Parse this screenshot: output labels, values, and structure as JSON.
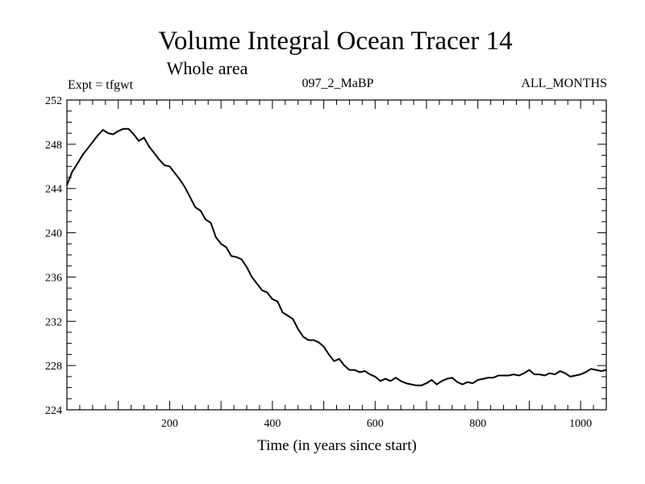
{
  "chart_data": {
    "type": "line",
    "title": "Volume Integral Ocean Tracer 14",
    "subtitle": "Whole area",
    "experiment": "Expt = tfgwt",
    "run_id": "097_2_MaBP",
    "period": "ALL_MONTHS",
    "xlabel": "Time (in years since start)",
    "ylabel": "",
    "xlim": [
      0,
      1050
    ],
    "ylim": [
      224,
      252
    ],
    "x_ticks": [
      200,
      400,
      600,
      800,
      1000
    ],
    "y_ticks": [
      224,
      228,
      232,
      236,
      240,
      244,
      248,
      252
    ],
    "grid": false,
    "series": [
      {
        "name": "Ocean Tracer 14",
        "color": "#000000",
        "x": [
          0,
          10,
          20,
          30,
          40,
          50,
          60,
          70,
          80,
          90,
          100,
          110,
          120,
          130,
          140,
          150,
          160,
          170,
          180,
          190,
          200,
          210,
          220,
          230,
          240,
          250,
          260,
          270,
          280,
          290,
          300,
          310,
          320,
          330,
          340,
          350,
          360,
          370,
          380,
          390,
          400,
          410,
          420,
          430,
          440,
          450,
          460,
          470,
          480,
          490,
          500,
          510,
          520,
          530,
          540,
          550,
          560,
          570,
          580,
          590,
          600,
          610,
          620,
          630,
          640,
          650,
          660,
          670,
          680,
          690,
          700,
          710,
          720,
          730,
          740,
          750,
          760,
          770,
          780,
          790,
          800,
          810,
          820,
          830,
          840,
          850,
          860,
          870,
          880,
          890,
          900,
          910,
          920,
          930,
          940,
          950,
          960,
          970,
          980,
          990,
          1000,
          1010,
          1020,
          1030,
          1040,
          1050
        ],
        "y": [
          244.3,
          245.5,
          246.2,
          247.0,
          247.6,
          248.2,
          248.8,
          249.3,
          249.0,
          248.9,
          249.2,
          249.4,
          249.4,
          248.9,
          248.3,
          248.6,
          247.8,
          247.2,
          246.6,
          246.1,
          246.0,
          245.4,
          244.8,
          244.1,
          243.2,
          242.3,
          242.0,
          241.2,
          240.9,
          239.6,
          239.0,
          238.7,
          237.9,
          237.8,
          237.6,
          236.9,
          236.0,
          235.4,
          234.8,
          234.6,
          234.0,
          233.8,
          232.8,
          232.5,
          232.2,
          231.3,
          230.6,
          230.3,
          230.3,
          230.1,
          229.7,
          229.0,
          228.4,
          228.6,
          228.0,
          227.6,
          227.6,
          227.4,
          227.5,
          227.2,
          227.0,
          226.6,
          226.8,
          226.6,
          226.9,
          226.6,
          226.4,
          226.3,
          226.2,
          226.2,
          226.4,
          226.7,
          226.3,
          226.6,
          226.8,
          226.9,
          226.5,
          226.3,
          226.5,
          226.4,
          226.7,
          226.8,
          226.9,
          226.9,
          227.1,
          227.1,
          227.1,
          227.2,
          227.1,
          227.3,
          227.6,
          227.2,
          227.2,
          227.1,
          227.3,
          227.2,
          227.5,
          227.3,
          227.0,
          227.1,
          227.2,
          227.4,
          227.7,
          227.6,
          227.5,
          227.6
        ]
      }
    ]
  }
}
